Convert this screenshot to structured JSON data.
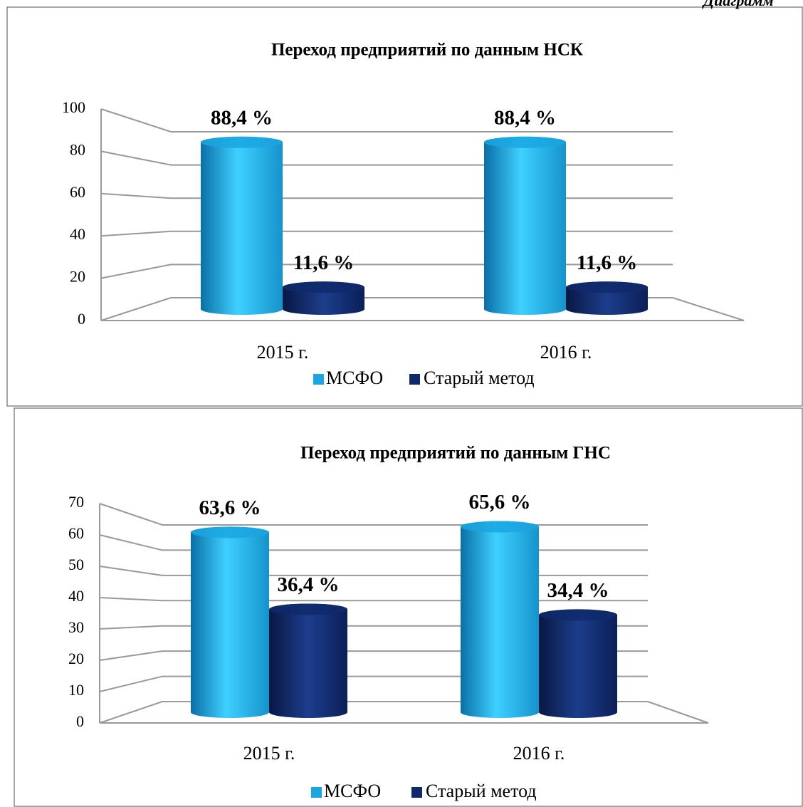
{
  "page_caption": "Диаграмм",
  "chart_data": [
    {
      "type": "bar",
      "title": "Переход предприятий по данным НСК",
      "categories": [
        "2015 г.",
        "2016 г."
      ],
      "series": [
        {
          "name": "МСФО",
          "color": "#1aa6e0",
          "values": [
            88.4,
            88.4
          ],
          "value_labels": [
            "88,4 %",
            "88,4 %"
          ]
        },
        {
          "name": "Старый метод",
          "color": "#0f2a6b",
          "values": [
            11.6,
            11.6
          ],
          "value_labels": [
            "11,6 %",
            "11,6 %"
          ]
        }
      ],
      "ylim": [
        0,
        100
      ],
      "yticks": [
        0,
        20,
        40,
        60,
        80,
        100
      ],
      "grid": true,
      "legend": "bottom"
    },
    {
      "type": "bar",
      "title": "Переход предприятий по данным ГНС",
      "categories": [
        "2015 г.",
        "2016 г."
      ],
      "series": [
        {
          "name": "МСФО",
          "color": "#1aa6e0",
          "values": [
            63.6,
            65.6
          ],
          "value_labels": [
            "63,6 %",
            "65,6 %"
          ]
        },
        {
          "name": "Старый метод",
          "color": "#0f2a6b",
          "values": [
            36.4,
            34.4
          ],
          "value_labels": [
            "36,4 %",
            "34,4 %"
          ]
        }
      ],
      "ylim": [
        0,
        70
      ],
      "yticks": [
        0,
        10,
        20,
        30,
        40,
        50,
        60,
        70
      ],
      "grid": true,
      "legend": "bottom"
    }
  ]
}
